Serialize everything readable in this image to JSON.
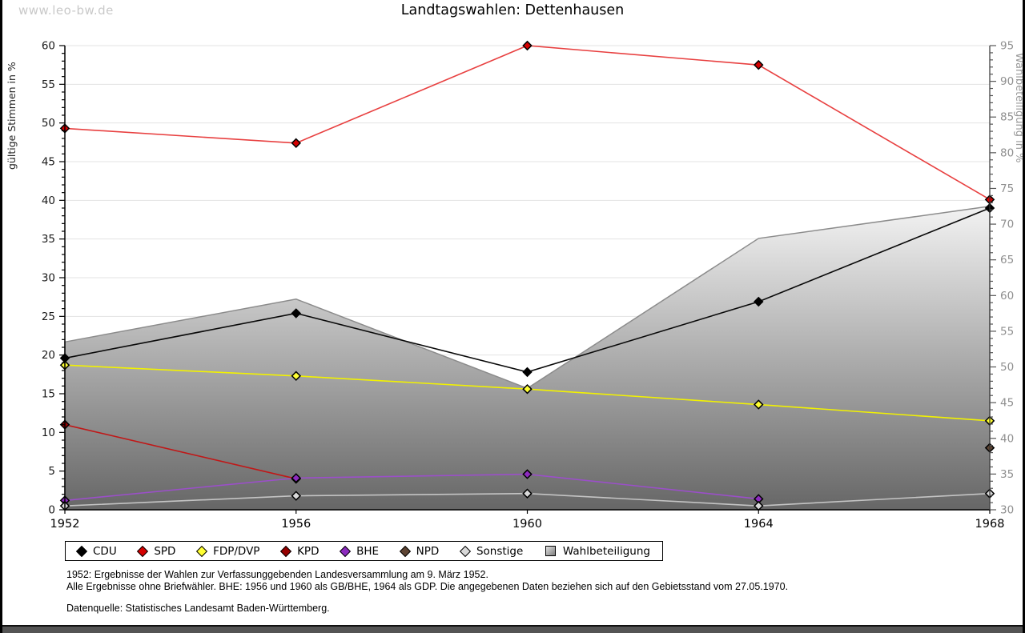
{
  "page": {
    "watermark": "www.leo-bw.de",
    "title": "Landtagswahlen: Dettenhausen",
    "footnotes": {
      "line1": "1952: Ergebnisse der Wahlen zur Verfassunggebenden Landesversammlung am 9. März 1952.",
      "line2": "Alle Ergebnisse ohne Briefwähler. BHE: 1956 und 1960 als GB/BHE, 1964 als GDP. Die angegebenen Daten beziehen sich auf den Gebietsstand vom 27.05.1970.",
      "source": "Datenquelle: Statistisches Landesamt Baden-Württemberg."
    }
  },
  "chart_data": {
    "type": "line",
    "title": "Landtagswahlen: Dettenhausen",
    "x_axis": {
      "min": 1952,
      "max": 1968,
      "tick_years": [
        1952,
        1956,
        1960,
        1964,
        1968
      ],
      "labels": [
        "1952",
        "1956",
        "1960",
        "1964",
        "1968"
      ]
    },
    "left_axis": {
      "label": "gültige Stimmen in %",
      "min": 0,
      "max": 60,
      "major": 5,
      "minor": 1,
      "label_color": "#222222",
      "tick_label_color": "#1a1a1a"
    },
    "right_axis": {
      "label": "Wahlbeteiligung in %",
      "min": 30,
      "max": 95,
      "major": 5,
      "minor": 1,
      "label_color": "#999999",
      "tick_label_color": "#8f8f8f"
    },
    "grid": {
      "show": true,
      "color": "#e3e3e3",
      "interval": 5
    },
    "area_series": {
      "name": "Wahlbeteiligung",
      "axis": "right",
      "points": [
        [
          1952,
          53.5
        ],
        [
          1956,
          59.5
        ],
        [
          1960,
          47.0
        ],
        [
          1964,
          68.0
        ],
        [
          1968,
          72.5
        ]
      ],
      "fill_top": "#f3f3f3",
      "fill_bottom": "#666666",
      "stroke": "#8c8c8c"
    },
    "series": [
      {
        "name": "CDU",
        "line_color": "#0a0a0a",
        "marker_color": "#000000",
        "points": [
          [
            1952,
            19.6
          ],
          [
            1956,
            25.4
          ],
          [
            1960,
            17.8
          ],
          [
            1964,
            26.9
          ],
          [
            1968,
            39.0
          ]
        ]
      },
      {
        "name": "SPD",
        "line_color": "#e84040",
        "marker_color": "#d50000",
        "points": [
          [
            1952,
            49.3
          ],
          [
            1956,
            47.4
          ],
          [
            1960,
            60.0
          ],
          [
            1964,
            57.5
          ],
          [
            1968,
            40.1
          ]
        ]
      },
      {
        "name": "FDP/DVP",
        "line_color": "#f2f200",
        "marker_color": "#ffff33",
        "points": [
          [
            1952,
            18.7
          ],
          [
            1956,
            17.3
          ],
          [
            1960,
            15.6
          ],
          [
            1964,
            13.6
          ],
          [
            1968,
            11.5
          ]
        ]
      },
      {
        "name": "KPD",
        "line_color": "#c01818",
        "marker_color": "#960000",
        "points": [
          [
            1952,
            11.0
          ],
          [
            1956,
            4.0
          ]
        ]
      },
      {
        "name": "BHE",
        "line_color": "#9b4fc9",
        "marker_color": "#8d2bbf",
        "points": [
          [
            1952,
            1.2
          ],
          [
            1956,
            4.1
          ],
          [
            1960,
            4.6
          ],
          [
            1964,
            1.4
          ]
        ]
      },
      {
        "name": "NPD",
        "line_color": "#5e4433",
        "marker_color": "#5e4433",
        "points": [
          [
            1968,
            8.0
          ]
        ]
      },
      {
        "name": "Sonstige",
        "line_color": "#c4c4c4",
        "marker_color": "#d9d9d9",
        "points": [
          [
            1952,
            0.5
          ],
          [
            1956,
            1.8
          ],
          [
            1960,
            2.1
          ],
          [
            1964,
            0.5
          ],
          [
            1968,
            2.1
          ]
        ]
      }
    ],
    "legend": [
      {
        "label": "CDU",
        "type": "diamond",
        "color": "#000000"
      },
      {
        "label": "SPD",
        "type": "diamond",
        "color": "#d50000"
      },
      {
        "label": "FDP/DVP",
        "type": "diamond",
        "color": "#ffff33"
      },
      {
        "label": "KPD",
        "type": "diamond",
        "color": "#960000"
      },
      {
        "label": "BHE",
        "type": "diamond",
        "color": "#8d2bbf"
      },
      {
        "label": "NPD",
        "type": "diamond",
        "color": "#5e4433"
      },
      {
        "label": "Sonstige",
        "type": "diamond",
        "color": "#d9d9d9"
      },
      {
        "label": "Wahlbeteiligung",
        "type": "square",
        "color": "#b9b9b9"
      }
    ]
  }
}
